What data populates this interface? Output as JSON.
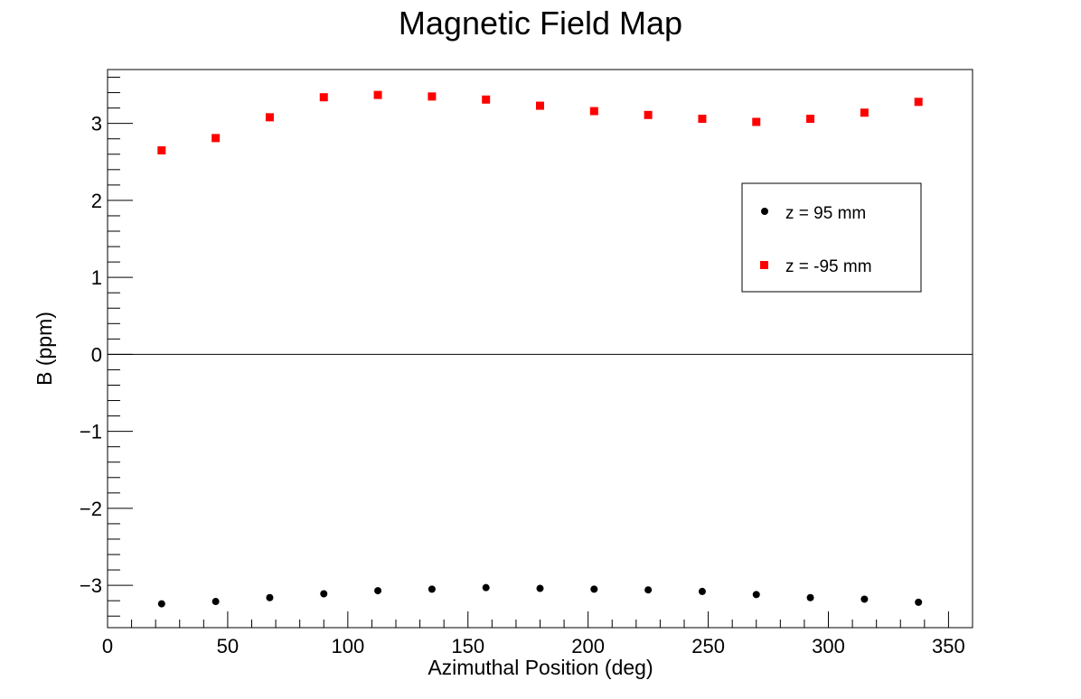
{
  "chart_data": {
    "type": "scatter",
    "title": "Magnetic Field Map",
    "xlabel": "Azimuthal Position (deg)",
    "ylabel": "B (ppm)",
    "xlim": [
      0,
      360
    ],
    "ylim": [
      -3.55,
      3.7
    ],
    "x_ticks": [
      0,
      50,
      100,
      150,
      200,
      250,
      300,
      350
    ],
    "y_ticks": [
      -3,
      -2,
      -1,
      0,
      1,
      2,
      3
    ],
    "y_tick_labels": [
      "−3",
      "−2",
      "−1",
      "0",
      "1",
      "2",
      "3"
    ],
    "grid": false,
    "zero_line": true,
    "legend_position": "top-right",
    "series": [
      {
        "name": "z = 95 mm",
        "marker": "circle",
        "color": "#000000",
        "x": [
          22.5,
          45,
          67.5,
          90,
          112.5,
          135,
          157.5,
          180,
          202.5,
          225,
          247.5,
          270,
          292.5,
          315,
          337.5
        ],
        "y": [
          -3.24,
          -3.21,
          -3.16,
          -3.11,
          -3.07,
          -3.05,
          -3.03,
          -3.04,
          -3.05,
          -3.06,
          -3.08,
          -3.12,
          -3.16,
          -3.18,
          -3.22
        ]
      },
      {
        "name": "z = -95 mm",
        "marker": "square",
        "color": "#ff0000",
        "x": [
          22.5,
          45,
          67.5,
          90,
          112.5,
          135,
          157.5,
          180,
          202.5,
          225,
          247.5,
          270,
          292.5,
          315,
          337.5
        ],
        "y": [
          2.65,
          2.81,
          3.08,
          3.34,
          3.37,
          3.35,
          3.31,
          3.23,
          3.16,
          3.11,
          3.06,
          3.02,
          3.06,
          3.14,
          3.28
        ]
      }
    ]
  }
}
